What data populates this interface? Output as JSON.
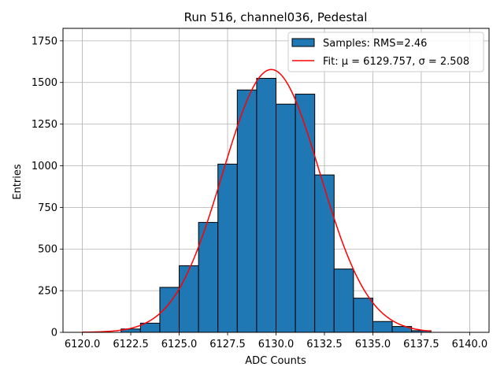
{
  "chart_data": {
    "type": "bar",
    "title": "Run 516, channel036, Pedestal",
    "xlabel": "ADC Counts",
    "ylabel": "Entries",
    "xlim": [
      6119.0,
      6141.0
    ],
    "ylim": [
      0,
      1825
    ],
    "xticks": [
      6120.0,
      6122.5,
      6125.0,
      6127.5,
      6130.0,
      6132.5,
      6135.0,
      6137.5,
      6140.0
    ],
    "xtick_labels": [
      "6120.0",
      "6122.5",
      "6125.0",
      "6127.5",
      "6130.0",
      "6132.5",
      "6135.0",
      "6137.5",
      "6140.0"
    ],
    "yticks": [
      0,
      250,
      500,
      750,
      1000,
      1250,
      1500,
      1750
    ],
    "ytick_labels": [
      "0",
      "250",
      "500",
      "750",
      "1000",
      "1250",
      "1500",
      "1750"
    ],
    "grid": true,
    "bin_edges": [
      6122,
      6123,
      6124,
      6125,
      6126,
      6127,
      6128,
      6129,
      6130,
      6131,
      6132,
      6133,
      6134,
      6135,
      6136,
      6137,
      6138
    ],
    "values": [
      20,
      55,
      270,
      400,
      660,
      1010,
      1455,
      1525,
      1370,
      1430,
      945,
      380,
      205,
      65,
      35,
      10
    ],
    "bar_color": "#1f77b4",
    "bar_edge_color": "#000000",
    "fit": {
      "mu": 6129.757,
      "sigma": 2.508,
      "amplitude": 1578,
      "x_range": [
        6120,
        6138
      ],
      "color": "#ff0000"
    },
    "legend": {
      "location": "top-right",
      "entries": [
        {
          "label": "Samples: RMS=2.46",
          "kind": "patch"
        },
        {
          "label": "Fit: μ = 6129.757, σ = 2.508",
          "kind": "line"
        }
      ]
    }
  }
}
